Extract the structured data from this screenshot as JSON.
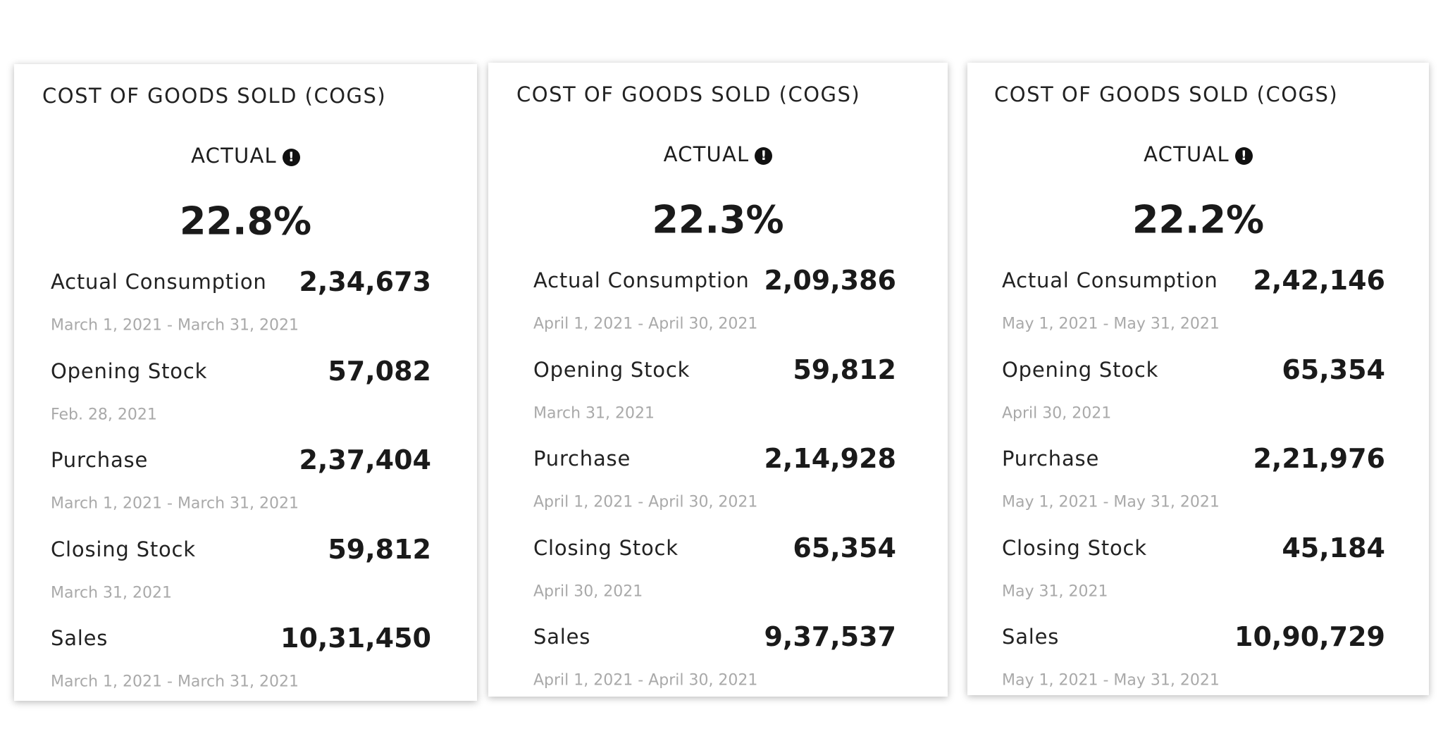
{
  "cards": [
    {
      "title": "COST OF GOODS SOLD (COGS)",
      "actual_label": "ACTUAL",
      "percent": "22.8%",
      "rows": [
        {
          "label": "Actual Consumption",
          "value": "2,34,673",
          "date": "March 1, 2021 - March 31, 2021"
        },
        {
          "label": "Opening Stock",
          "value": "57,082",
          "date": "Feb. 28, 2021"
        },
        {
          "label": "Purchase",
          "value": "2,37,404",
          "date": "March 1, 2021 - March 31, 2021"
        },
        {
          "label": "Closing Stock",
          "value": "59,812",
          "date": "March 31, 2021"
        },
        {
          "label": "Sales",
          "value": "10,31,450",
          "date": "March 1, 2021 - March 31, 2021"
        }
      ]
    },
    {
      "title": "COST OF GOODS SOLD (COGS)",
      "actual_label": "ACTUAL",
      "percent": "22.3%",
      "rows": [
        {
          "label": "Actual Consumption",
          "value": "2,09,386",
          "date": "April 1, 2021 - April 30, 2021"
        },
        {
          "label": "Opening Stock",
          "value": "59,812",
          "date": "March 31, 2021"
        },
        {
          "label": "Purchase",
          "value": "2,14,928",
          "date": "April 1, 2021 - April 30, 2021"
        },
        {
          "label": "Closing Stock",
          "value": "65,354",
          "date": "April 30, 2021"
        },
        {
          "label": "Sales",
          "value": "9,37,537",
          "date": "April 1, 2021 - April 30, 2021"
        }
      ]
    },
    {
      "title": "COST OF GOODS SOLD (COGS)",
      "actual_label": "ACTUAL",
      "percent": "22.2%",
      "rows": [
        {
          "label": "Actual Consumption",
          "value": "2,42,146",
          "date": "May 1, 2021 - May 31, 2021"
        },
        {
          "label": "Opening Stock",
          "value": "65,354",
          "date": "April 30, 2021"
        },
        {
          "label": "Purchase",
          "value": "2,21,976",
          "date": "May 1, 2021 - May 31, 2021"
        },
        {
          "label": "Closing Stock",
          "value": "45,184",
          "date": "May 31, 2021"
        },
        {
          "label": "Sales",
          "value": "10,90,729",
          "date": "May 1, 2021 - May 31, 2021"
        }
      ]
    }
  ],
  "icons": {
    "info": "info-exclamation-icon",
    "info_glyph": "!"
  }
}
